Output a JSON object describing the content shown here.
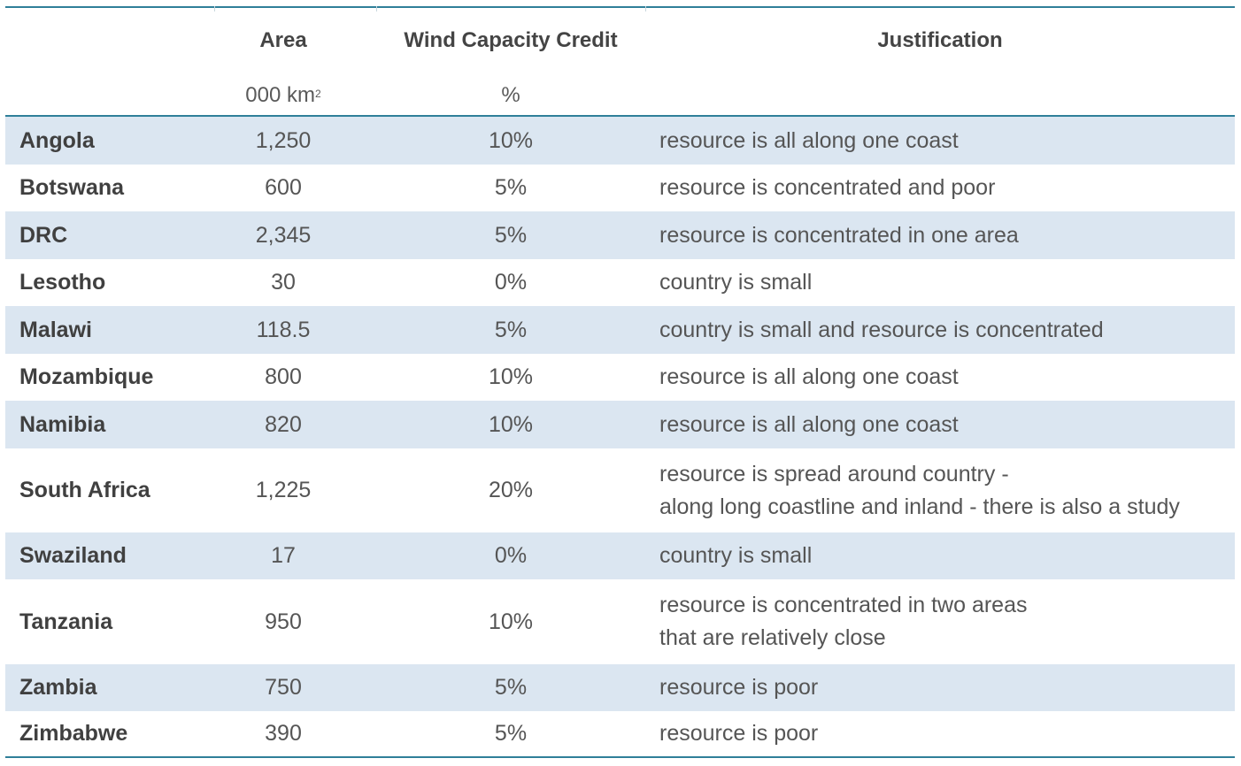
{
  "header": {
    "area_label": "Area",
    "wind_label": "Wind Capacity Credit",
    "justification_label": "Justification",
    "area_unit": "000 km",
    "area_unit_sup": "2",
    "wind_unit": "%"
  },
  "rows": [
    {
      "country": "Angola",
      "area": "1,250",
      "credit": "10%",
      "just1": "resource is all along one coast",
      "just2": ""
    },
    {
      "country": "Botswana",
      "area": "600",
      "credit": "5%",
      "just1": "resource is concentrated and poor",
      "just2": ""
    },
    {
      "country": "DRC",
      "area": "2,345",
      "credit": "5%",
      "just1": "resource is concentrated in one area",
      "just2": ""
    },
    {
      "country": "Lesotho",
      "area": "30",
      "credit": "0%",
      "just1": "country is small",
      "just2": ""
    },
    {
      "country": "Malawi",
      "area": "118.5",
      "credit": "5%",
      "just1": "country is small and resource is concentrated",
      "just2": ""
    },
    {
      "country": "Mozambique",
      "area": "800",
      "credit": "10%",
      "just1": "resource is all along one coast",
      "just2": ""
    },
    {
      "country": "Namibia",
      "area": "820",
      "credit": "10%",
      "just1": "resource is all along one coast",
      "just2": ""
    },
    {
      "country": "South Africa",
      "area": "1,225",
      "credit": "20%",
      "just1": "resource is spread around country -",
      "just2": "along long coastline and inland - there is also a study"
    },
    {
      "country": "Swaziland",
      "area": "17",
      "credit": "0%",
      "just1": "country is small",
      "just2": ""
    },
    {
      "country": "Tanzania",
      "area": "950",
      "credit": "10%",
      "just1": "resource is concentrated in two areas",
      "just2": "that are relatively close"
    },
    {
      "country": "Zambia",
      "area": "750",
      "credit": "5%",
      "just1": "resource is poor",
      "just2": ""
    },
    {
      "country": "Zimbabwe",
      "area": "390",
      "credit": "5%",
      "just1": "resource is poor",
      "just2": ""
    }
  ]
}
